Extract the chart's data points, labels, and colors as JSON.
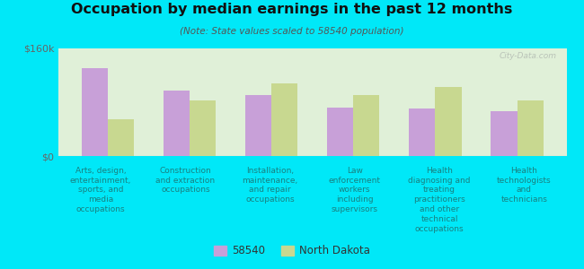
{
  "title": "Occupation by median earnings in the past 12 months",
  "subtitle": "(Note: State values scaled to 58540 population)",
  "background_color": "#00e8f8",
  "plot_bg_gradient_top": "#e0f0d8",
  "plot_bg_gradient_bottom": "#f0f5e0",
  "categories": [
    "Arts, design,\nentertainment,\nsports, and\nmedia\noccupations",
    "Construction\nand extraction\noccupations",
    "Installation,\nmaintenance,\nand repair\noccupations",
    "Law\nenforcement\nworkers\nincluding\nsupervisors",
    "Health\ndiagnosing and\ntreating\npractitioners\nand other\ntechnical\noccupations",
    "Health\ntechnologists\nand\ntechnicians"
  ],
  "values_58540": [
    130000,
    97000,
    90000,
    72000,
    70000,
    67000
  ],
  "values_nd": [
    55000,
    83000,
    108000,
    90000,
    102000,
    82000
  ],
  "color_58540": "#c8a0d8",
  "color_nd": "#c8d890",
  "ylim": [
    0,
    160000
  ],
  "yticks": [
    0,
    160000
  ],
  "ytick_labels": [
    "$0",
    "$160k"
  ],
  "legend_58540": "58540",
  "legend_nd": "North Dakota",
  "watermark": "City-Data.com"
}
